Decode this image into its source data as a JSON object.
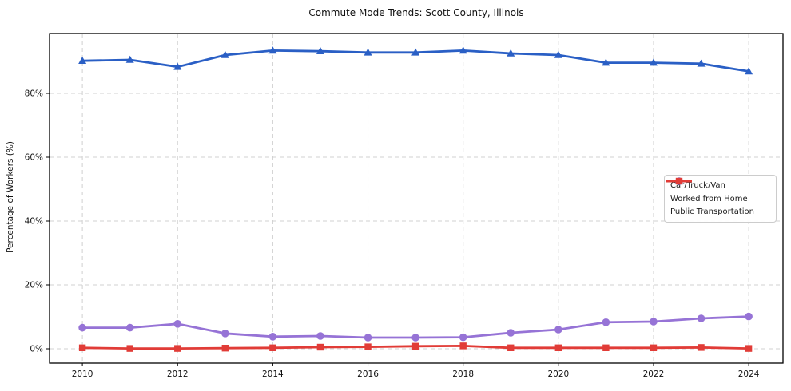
{
  "chart_data": {
    "type": "line",
    "title": "Commute Mode Trends: Scott County, Illinois",
    "xlabel": "",
    "ylabel": "Percentage of Workers (%)",
    "x": [
      2010,
      2011,
      2012,
      2013,
      2014,
      2015,
      2016,
      2017,
      2018,
      2019,
      2020,
      2021,
      2022,
      2023,
      2024
    ],
    "x_ticks": [
      2010,
      2012,
      2014,
      2016,
      2018,
      2020,
      2022,
      2024
    ],
    "x_tick_labels": [
      "2010",
      "2012",
      "2014",
      "2016",
      "2018",
      "2020",
      "2022",
      "2024"
    ],
    "y_ticks": [
      0,
      20,
      40,
      60,
      80
    ],
    "y_tick_labels": [
      "0%",
      "20%",
      "40%",
      "60%",
      "80%"
    ],
    "xlim": [
      2009.31,
      2024.72
    ],
    "ylim": [
      -4.5,
      98.75
    ],
    "grid": true,
    "grid_color": "#d0d0d0",
    "legend_position": "center-right",
    "series": [
      {
        "name": "Car/Truck/Van",
        "color": "#2a5fc5",
        "marker": "triangle",
        "values": [
          90.2,
          90.5,
          88.3,
          92.0,
          93.4,
          93.2,
          92.8,
          92.8,
          93.4,
          92.5,
          92.0,
          89.6,
          89.6,
          89.3,
          86.9
        ]
      },
      {
        "name": "Worked from Home",
        "color": "#9673d6",
        "marker": "circle",
        "values": [
          6.6,
          6.6,
          7.8,
          4.8,
          3.8,
          4.0,
          3.5,
          3.5,
          3.6,
          5.0,
          6.0,
          8.3,
          8.5,
          9.5,
          10.1
        ]
      },
      {
        "name": "Public Transportation",
        "color": "#e13c37",
        "marker": "square",
        "values": [
          0.3,
          0.1,
          0.1,
          0.2,
          0.3,
          0.5,
          0.6,
          0.8,
          0.9,
          0.3,
          0.3,
          0.3,
          0.3,
          0.4,
          0.1
        ]
      }
    ]
  }
}
